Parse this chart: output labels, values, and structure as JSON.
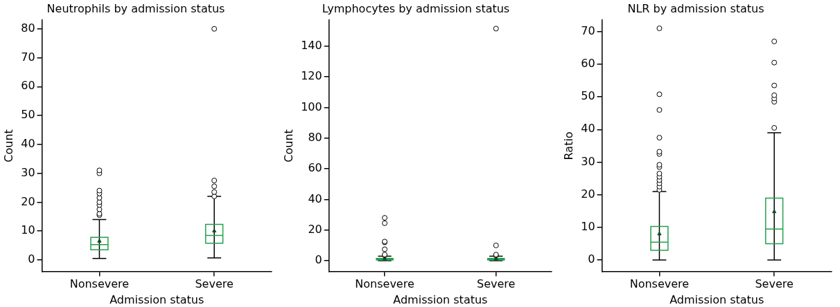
{
  "chart_data": [
    {
      "type": "box",
      "title": "Neutrophils by admission status",
      "xlabel": "Admission status",
      "ylabel": "Count",
      "categories": [
        "Nonsevere",
        "Severe"
      ],
      "ylim": [
        -4,
        83
      ],
      "yticks": [
        0,
        10,
        20,
        30,
        40,
        50,
        60,
        70,
        80
      ],
      "series": [
        {
          "color": "#22a04b",
          "boxes": [
            {
              "low": 0.5,
              "q1": 3.5,
              "median": 5.3,
              "q3": 7.8,
              "high": 14,
              "mean": 6.5,
              "outliers": [
                15.5,
                16,
                17.5,
                19,
                20,
                21.5,
                23,
                24,
                30,
                31
              ]
            },
            {
              "low": 0.7,
              "q1": 5.8,
              "median": 8.5,
              "q3": 12.3,
              "high": 22,
              "mean": 10,
              "outliers": [
                22,
                23.5,
                25.5,
                27.5,
                80
              ]
            }
          ]
        }
      ]
    },
    {
      "type": "box",
      "title": "Lymphocytes by admission status",
      "xlabel": "Admission status",
      "ylabel": "Count",
      "categories": [
        "Nonsevere",
        "Severe"
      ],
      "ylim": [
        -7,
        157
      ],
      "yticks": [
        0,
        20,
        40,
        60,
        80,
        100,
        120,
        140
      ],
      "series": [
        {
          "color": "#22a04b",
          "boxes": [
            {
              "low": 0,
              "q1": 0.5,
              "median": 1,
              "q3": 1.5,
              "high": 3,
              "mean": 1.2,
              "outliers": [
                3.5,
                4,
                7.5,
                12,
                12.5,
                24.5,
                28
              ]
            },
            {
              "low": 0,
              "q1": 0.5,
              "median": 1,
              "q3": 1.5,
              "high": 3,
              "mean": 1.1,
              "outliers": [
                3.5,
                4,
                10,
                151.5
              ]
            }
          ]
        }
      ]
    },
    {
      "type": "box",
      "title": "NLR by admission status",
      "xlabel": "Admission status",
      "ylabel": "Ratio",
      "categories": [
        "Nonsevere",
        "Severe"
      ],
      "ylim": [
        -3.5,
        73.5
      ],
      "yticks": [
        0,
        10,
        20,
        30,
        40,
        50,
        60,
        70
      ],
      "series": [
        {
          "color": "#22a04b",
          "boxes": [
            {
              "low": 0,
              "q1": 3,
              "median": 5.5,
              "q3": 10.3,
              "high": 21,
              "mean": 8,
              "outliers": [
                21.5,
                22.5,
                23.5,
                24.5,
                25.5,
                26.5,
                28.5,
                29.2,
                32.5,
                33.2,
                37.5,
                46,
                50.8,
                71
              ]
            },
            {
              "low": 0,
              "q1": 5,
              "median": 9.5,
              "q3": 19,
              "high": 39,
              "mean": 14.8,
              "outliers": [
                40.5,
                48.5,
                49.5,
                50.5,
                53.5,
                60.5,
                67
              ]
            }
          ]
        }
      ]
    }
  ]
}
